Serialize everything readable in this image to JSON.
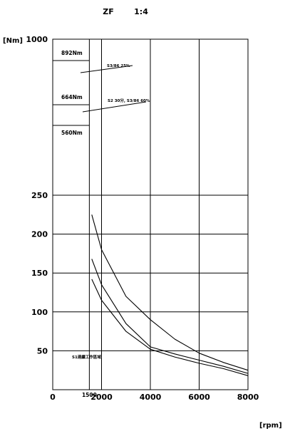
{
  "chart_data": {
    "type": "line",
    "title": "ZF",
    "subtitle": "1:4",
    "ylabel": "[Nm]",
    "xlabel": "[rpm]",
    "xlim": [
      0,
      8000
    ],
    "x_ticks": [
      {
        "value": 0,
        "label": "0"
      },
      {
        "value": 1500,
        "label": "1500"
      },
      {
        "value": 2000,
        "label": "2000"
      },
      {
        "value": 4000,
        "label": "4000"
      },
      {
        "value": 6000,
        "label": "6000"
      },
      {
        "value": 8000,
        "label": "8000"
      }
    ],
    "y_ticks": [
      {
        "value": 50,
        "label": "50"
      },
      {
        "value": 100,
        "label": "100"
      },
      {
        "value": 150,
        "label": "150"
      },
      {
        "value": 200,
        "label": "200"
      },
      {
        "value": 250,
        "label": "250"
      },
      {
        "value": 1000,
        "label": "1000"
      }
    ],
    "y_axis_break": {
      "lower_range": [
        0,
        250
      ],
      "upper_range": [
        500,
        1000
      ]
    },
    "grid": true,
    "torque_levels": [
      {
        "label": "892Nm",
        "value": 892
      },
      {
        "label": "664Nm",
        "value": 664
      },
      {
        "label": "560Nm",
        "value": 560
      }
    ],
    "annotations": [
      {
        "text": "S3/86 25%"
      },
      {
        "text": "S2 30分, S3/86 60%"
      },
      {
        "text": "S1連續工作區域"
      }
    ],
    "series": [
      {
        "x": [
          1600,
          2000,
          3000,
          4000,
          5000,
          6000,
          7000,
          8000
        ],
        "values": [
          225,
          180,
          120,
          90,
          65,
          47,
          35,
          25
        ]
      },
      {
        "x": [
          1600,
          2000,
          3000,
          4000,
          5000,
          6000,
          7000,
          8000
        ],
        "values": [
          168,
          135,
          85,
          55,
          46,
          38,
          30,
          21
        ]
      },
      {
        "x": [
          1600,
          2000,
          3000,
          4000,
          5000,
          6000,
          7000,
          8000
        ],
        "values": [
          142,
          115,
          75,
          52,
          42,
          34,
          27,
          18
        ]
      }
    ],
    "colors": {
      "line": "#000000",
      "background": "#ffffff"
    }
  }
}
